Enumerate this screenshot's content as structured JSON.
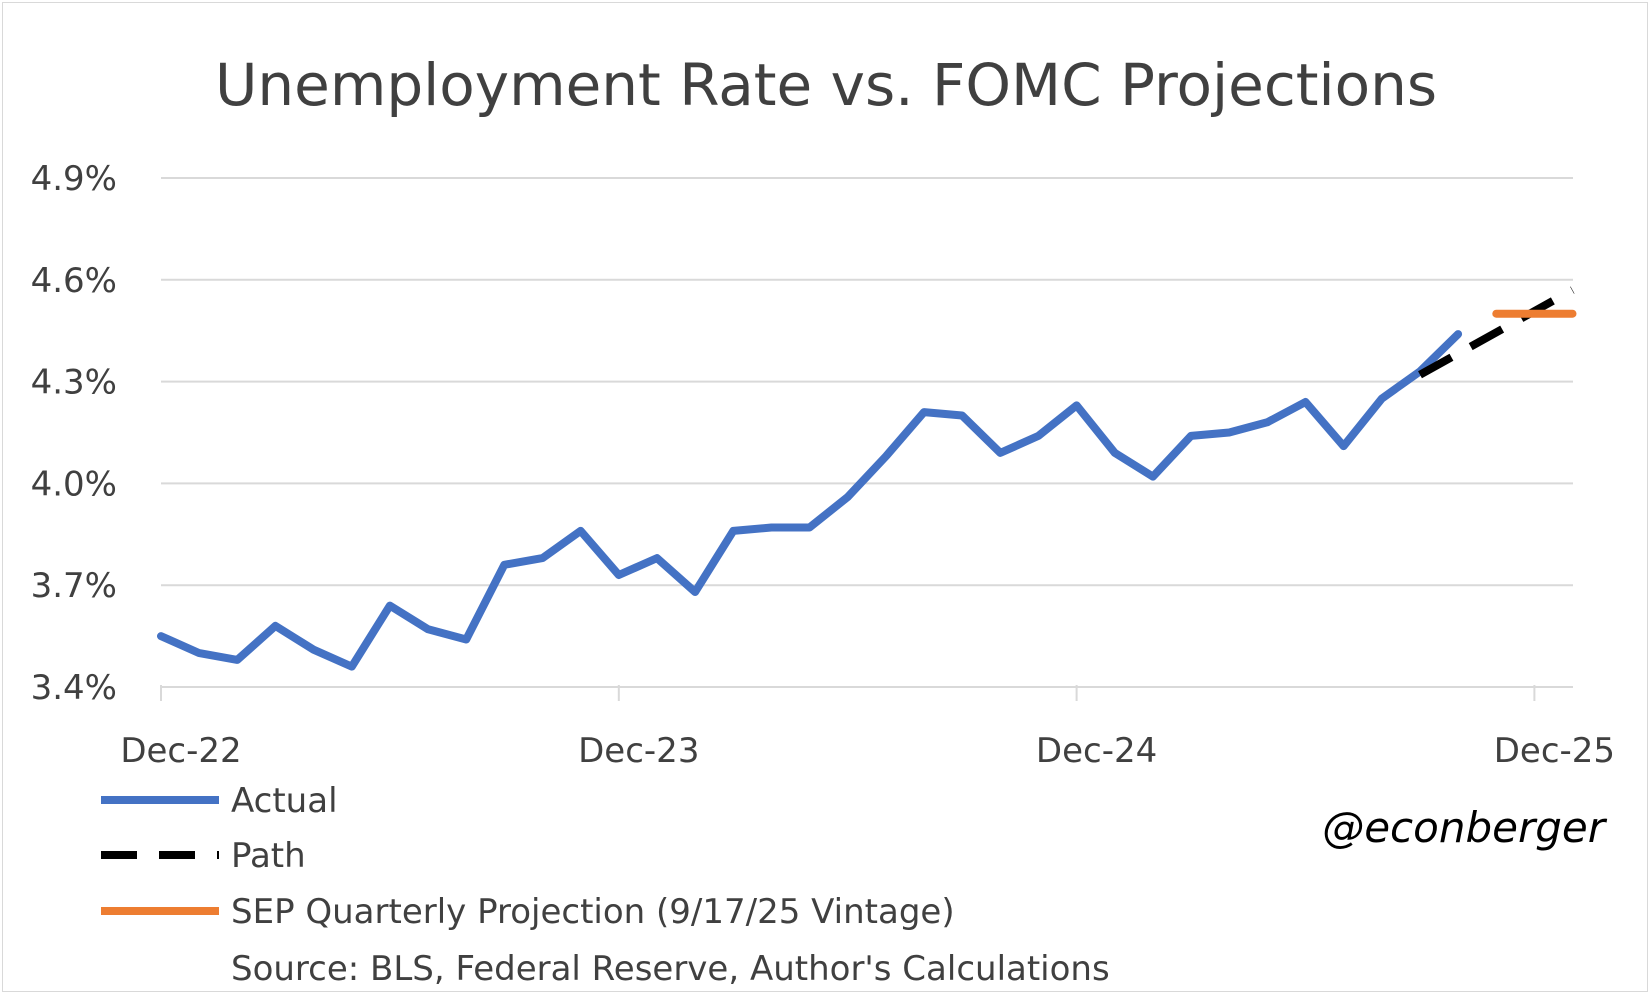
{
  "chart_data": {
    "type": "line",
    "title": "Unemployment Rate vs. FOMC Projections",
    "ylim": [
      3.4,
      4.9
    ],
    "y_ticks": [
      3.4,
      3.7,
      4.0,
      4.3,
      4.6,
      4.9
    ],
    "y_tick_labels": [
      "3.4%",
      "3.7%",
      "4.0%",
      "4.3%",
      "4.6%",
      "4.9%"
    ],
    "xlim": [
      "2022-12",
      "2026-01"
    ],
    "x_ticks": [
      "2022-12",
      "2023-12",
      "2024-12",
      "2025-12"
    ],
    "x_tick_labels": [
      "Dec-22",
      "Dec-23",
      "Dec-24",
      "Dec-25"
    ],
    "grid": true,
    "series": [
      {
        "name": "Actual",
        "color": "#4472c4",
        "style": "solid",
        "points": [
          [
            "2022-12",
            3.55
          ],
          [
            "2023-01",
            3.5
          ],
          [
            "2023-02",
            3.48
          ],
          [
            "2023-03",
            3.58
          ],
          [
            "2023-04",
            3.51
          ],
          [
            "2023-05",
            3.46
          ],
          [
            "2023-06",
            3.64
          ],
          [
            "2023-07",
            3.57
          ],
          [
            "2023-08",
            3.54
          ],
          [
            "2023-09",
            3.76
          ],
          [
            "2023-10",
            3.78
          ],
          [
            "2023-11",
            3.86
          ],
          [
            "2023-12",
            3.73
          ],
          [
            "2024-01",
            3.78
          ],
          [
            "2024-02",
            3.68
          ],
          [
            "2024-03",
            3.86
          ],
          [
            "2024-04",
            3.87
          ],
          [
            "2024-05",
            3.87
          ],
          [
            "2024-06",
            3.96
          ],
          [
            "2024-07",
            4.08
          ],
          [
            "2024-08",
            4.21
          ],
          [
            "2024-09",
            4.2
          ],
          [
            "2024-10",
            4.09
          ],
          [
            "2024-11",
            4.14
          ],
          [
            "2024-12",
            4.23
          ],
          [
            "2025-01",
            4.09
          ],
          [
            "2025-02",
            4.02
          ],
          [
            "2025-03",
            4.14
          ],
          [
            "2025-04",
            4.15
          ],
          [
            "2025-05",
            4.18
          ],
          [
            "2025-06",
            4.24
          ],
          [
            "2025-07",
            4.11
          ],
          [
            "2025-08",
            4.25
          ],
          [
            "2025-09",
            4.33
          ],
          [
            "2025-10",
            4.44
          ]
        ]
      },
      {
        "name": "Path",
        "color": "#000000",
        "style": "dashed",
        "points": [
          [
            "2025-09",
            4.32
          ],
          [
            "2026-01",
            4.57
          ]
        ]
      },
      {
        "name": "SEP Quarterly Projection (9/17/25 Vintage)",
        "color": "#ed7d31",
        "style": "solid",
        "points": [
          [
            "2025-11",
            4.5
          ],
          [
            "2026-01",
            4.5
          ]
        ]
      }
    ],
    "source_note": "Source: BLS, Federal Reserve, Author's Calculations",
    "watermark": "@econberger"
  }
}
